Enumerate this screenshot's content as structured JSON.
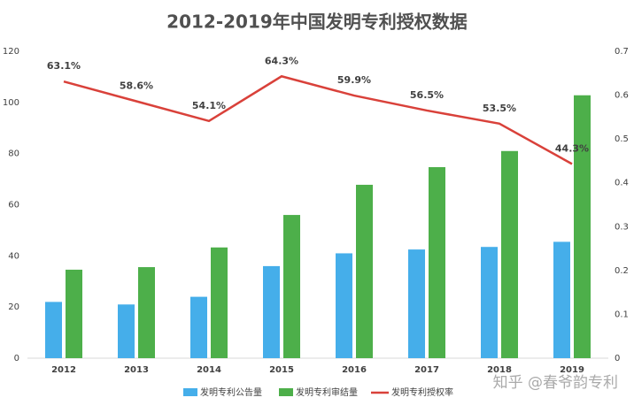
{
  "chart_data": {
    "type": "bar-line",
    "title": "2012-2019年中国发明专利授权数据",
    "categories": [
      "2012",
      "2013",
      "2014",
      "2015",
      "2016",
      "2017",
      "2018",
      "2019"
    ],
    "series": [
      {
        "name": "发明专利公告量",
        "type": "bar",
        "color": "#45aeea",
        "values": [
          22,
          21,
          24,
          36,
          41,
          42.5,
          43.5,
          45.5
        ]
      },
      {
        "name": "发明专利审结量",
        "type": "bar",
        "color": "#4daf4a",
        "values": [
          34.6,
          35.6,
          43.3,
          56,
          67.8,
          74.7,
          81,
          102.8
        ]
      },
      {
        "name": "发明专利授权率",
        "type": "line",
        "axis": "y2",
        "color": "#d9413a",
        "values": [
          0.631,
          0.586,
          0.541,
          0.643,
          0.599,
          0.565,
          0.535,
          0.443
        ],
        "value_labels": [
          "63.1%",
          "58.6%",
          "54.1%",
          "64.3%",
          "59.9%",
          "56.5%",
          "53.5%",
          "44.3%"
        ]
      }
    ],
    "ylim": [
      0,
      120
    ],
    "yticks": [
      0,
      20,
      40,
      60,
      80,
      100,
      120
    ],
    "y2lim": [
      0,
      0.7
    ],
    "y2ticks": [
      0,
      0.1,
      0.2,
      0.3,
      0.4,
      0.5,
      0.6,
      0.7
    ],
    "grid": false,
    "legend": "bottom",
    "watermark": "知乎 @春爷韵专利"
  }
}
